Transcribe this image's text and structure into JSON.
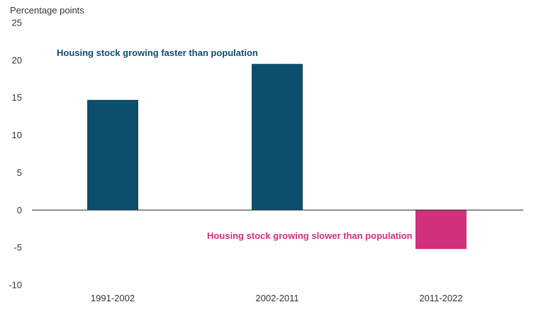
{
  "chart_data": {
    "type": "bar",
    "ylabel": "Percentage points",
    "categories": [
      "1991-2002",
      "2002-2011",
      "2011-2022"
    ],
    "values": [
      14.7,
      19.5,
      -5.2
    ],
    "ylim": [
      -10,
      25
    ],
    "yticks": [
      -10,
      -5,
      0,
      5,
      10,
      15,
      20,
      25
    ],
    "grid": false,
    "colors": {
      "positive": "#0b4f6c",
      "negative": "#d1307a"
    },
    "annotations": {
      "above": "Housing stock growing faster than population",
      "below": "Housing stock growing slower than population"
    }
  }
}
